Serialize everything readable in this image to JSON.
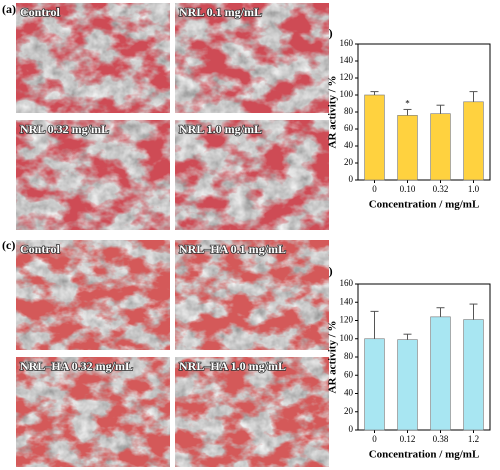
{
  "panel_labels": [
    "(a)",
    "(b)",
    "(c)",
    "(d)"
  ],
  "micrographs": [
    [
      "Control",
      "NRL 0.1 mg/mL",
      "NRL 0.32 mg/mL",
      "NRL 1.0 mg/mL"
    ],
    [
      "Control",
      "NRL–HA 0.1 mg/mL",
      "NRL–HA 0.32 mg/mL",
      "NRL–HA 1.0 mg/mL"
    ]
  ],
  "chart_data": [
    {
      "type": "bar",
      "categories": [
        "0",
        "0.10",
        "0.32",
        "1.0"
      ],
      "values": [
        100,
        76,
        78,
        92
      ],
      "errors": [
        4,
        7,
        10,
        12
      ],
      "color": "#ffd23f",
      "xlabel": "Concentration / mg/mL",
      "ylabel": "AR activity / %",
      "ylim": [
        0,
        160
      ],
      "yticks": [
        0,
        20,
        40,
        60,
        80,
        100,
        120,
        140,
        160
      ],
      "annotations": [
        {
          "text": "*",
          "x": "0.10"
        }
      ]
    },
    {
      "type": "bar",
      "categories": [
        "0",
        "0.12",
        "0.38",
        "1.2"
      ],
      "values": [
        100,
        99,
        124,
        121
      ],
      "errors": [
        30,
        6,
        10,
        17
      ],
      "color": "#a8e6f2",
      "xlabel": "Concentration / mg/mL",
      "ylabel": "AR activity / %",
      "ylim": [
        0,
        160
      ],
      "yticks": [
        0,
        20,
        40,
        60,
        80,
        100,
        120,
        140,
        160
      ]
    }
  ]
}
